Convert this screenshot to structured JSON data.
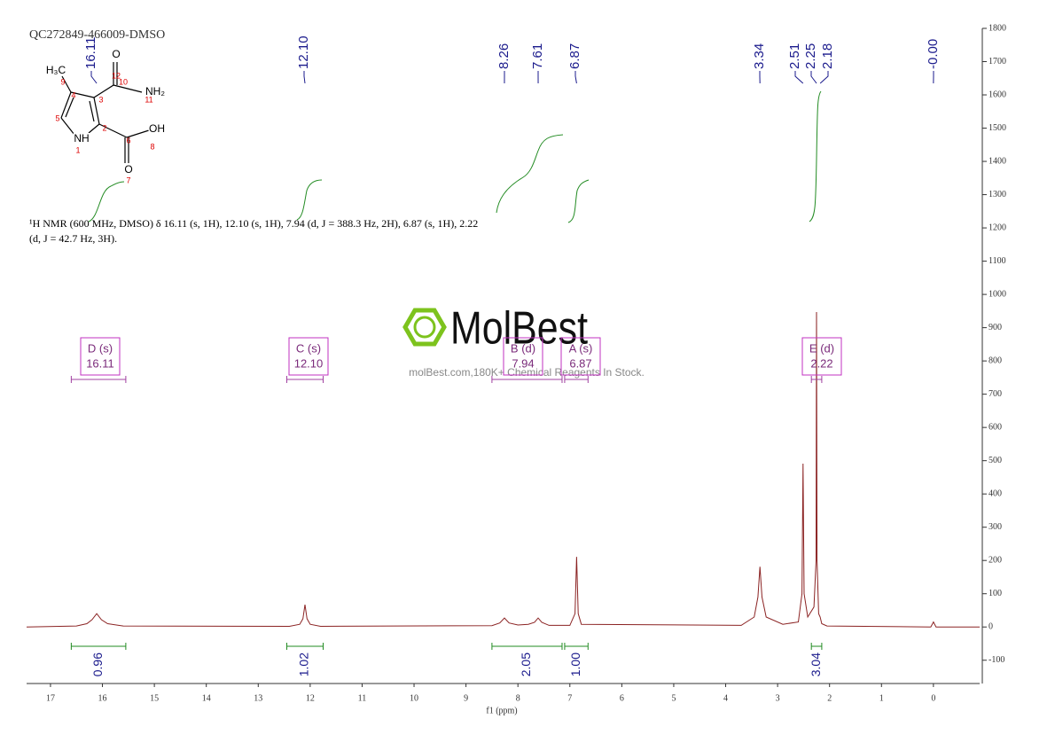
{
  "title": "QC272849-466009-DMSO",
  "structure": {
    "atoms": [
      "H₃C",
      "9",
      "4",
      "12",
      "O",
      "10",
      "NH₂",
      "11",
      "3",
      "5",
      "2",
      "NH",
      "1",
      "6",
      "OH",
      "8",
      "O",
      "7"
    ]
  },
  "description": [
    "¹H NMR (600 MHz, DMSO) δ 16.11 (s, 1H), 12.10 (s, 1H), 7.94 (d, J = 388.3 Hz, 2H), 6.87 (s, 1H), 2.22",
    "(d, J = 42.7 Hz, 3H)."
  ],
  "watermark": {
    "brand": "MolBest",
    "tagline": "molBest.com,180K+ Chemical Reagents In Stock."
  },
  "chart_data": {
    "type": "line",
    "x_label": "f1 (ppm)",
    "x": [
      17.46,
      16.5,
      16.3,
      16.2,
      16.11,
      16.02,
      15.9,
      15.6,
      12.4,
      12.2,
      12.14,
      12.1,
      12.06,
      12.0,
      11.8,
      8.5,
      8.35,
      8.26,
      8.17,
      8.0,
      7.8,
      7.68,
      7.61,
      7.54,
      7.4,
      7.0,
      6.9,
      6.87,
      6.84,
      6.78,
      3.7,
      3.45,
      3.38,
      3.34,
      3.3,
      3.22,
      2.9,
      2.6,
      2.53,
      2.51,
      2.49,
      2.42,
      2.3,
      2.26,
      2.25,
      2.24,
      2.21,
      2.18,
      2.15,
      2.05,
      0.05,
      0.0,
      -0.05,
      -0.89
    ],
    "series": [
      {
        "color": "#8b2323",
        "values": [
          0,
          3,
          10,
          22,
          40,
          22,
          10,
          3,
          2,
          8,
          25,
          67,
          25,
          8,
          2,
          4,
          12,
          27,
          12,
          6,
          8,
          14,
          27,
          14,
          5,
          5,
          40,
          211,
          40,
          8,
          5,
          30,
          90,
          181,
          90,
          30,
          8,
          15,
          100,
          491,
          100,
          30,
          60,
          200,
          947,
          200,
          40,
          30,
          10,
          3,
          0,
          15,
          0,
          0
        ]
      }
    ],
    "xlim": [
      17.46,
      -0.89
    ],
    "xticks": [
      17,
      16,
      15,
      14,
      13,
      12,
      11,
      10,
      9,
      8,
      7,
      6,
      5,
      4,
      3,
      2,
      1,
      0
    ],
    "ylim": [
      -170,
      1800
    ],
    "yticks": [
      -100,
      0,
      100,
      200,
      300,
      400,
      500,
      600,
      700,
      800,
      900,
      1000,
      1100,
      1200,
      1300,
      1400,
      1500,
      1600,
      1700,
      1800
    ],
    "peak_labels": [
      16.11,
      {
        "value": 12.1,
        "label": "12.10"
      },
      8.26,
      7.61,
      6.87,
      3.34,
      2.51,
      2.25,
      2.18,
      {
        "value": 0,
        "label": "-0.00"
      }
    ],
    "multiplets": [
      {
        "name": "D (s)",
        "shift": 16.11,
        "range": [
          16.6,
          15.55
        ]
      },
      {
        "name": "C (s)",
        "shift": {
          "value": 12.1,
          "label": "12.10"
        },
        "range": [
          12.45,
          11.75
        ]
      },
      {
        "name": "B (d)",
        "shift": 7.94,
        "range": [
          8.5,
          7.15
        ]
      },
      {
        "name": "A (s)",
        "shift": 6.87,
        "range": [
          7.1,
          6.65
        ]
      },
      {
        "name": "E (d)",
        "shift": 2.22,
        "range": [
          2.35,
          2.15
        ]
      }
    ],
    "integrals": [
      {
        "value": 0.96,
        "range": [
          16.6,
          15.55
        ]
      },
      {
        "value": 1.02,
        "range": [
          12.45,
          11.75
        ]
      },
      {
        "value": 2.05,
        "range": [
          8.5,
          7.15
        ]
      },
      {
        "value": 1,
        "label": "1.00",
        "range": [
          7.1,
          6.65
        ]
      },
      {
        "value": 3.04,
        "range": [
          2.35,
          2.15
        ]
      }
    ]
  }
}
